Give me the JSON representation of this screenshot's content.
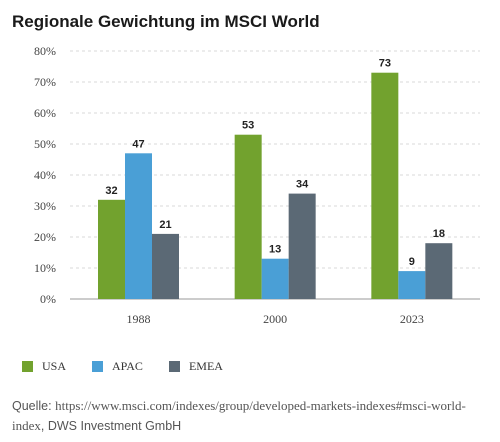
{
  "chart_data": {
    "type": "bar",
    "title": "Regionale Gewichtung im MSCI World",
    "categories": [
      "1988",
      "2000",
      "2023"
    ],
    "series": [
      {
        "name": "USA",
        "values": [
          32,
          53,
          73
        ],
        "color": "#72a22e"
      },
      {
        "name": "APAC",
        "values": [
          47,
          13,
          9
        ],
        "color": "#4a9fd6"
      },
      {
        "name": "EMEA",
        "values": [
          21,
          34,
          18
        ],
        "color": "#5b6975"
      }
    ],
    "ylim": [
      0,
      80
    ],
    "yticks": [
      "0%",
      "10%",
      "20%",
      "30%",
      "40%",
      "50%",
      "60%",
      "70%",
      "80%"
    ],
    "grid": true,
    "legend_position": "bottom-left"
  },
  "source": {
    "prefix": "Quelle: ",
    "url": "https://www.msci.com/indexes/group/developed-markets-indexes#msci-world-index",
    "suffix": ", DWS Investment GmbH"
  }
}
